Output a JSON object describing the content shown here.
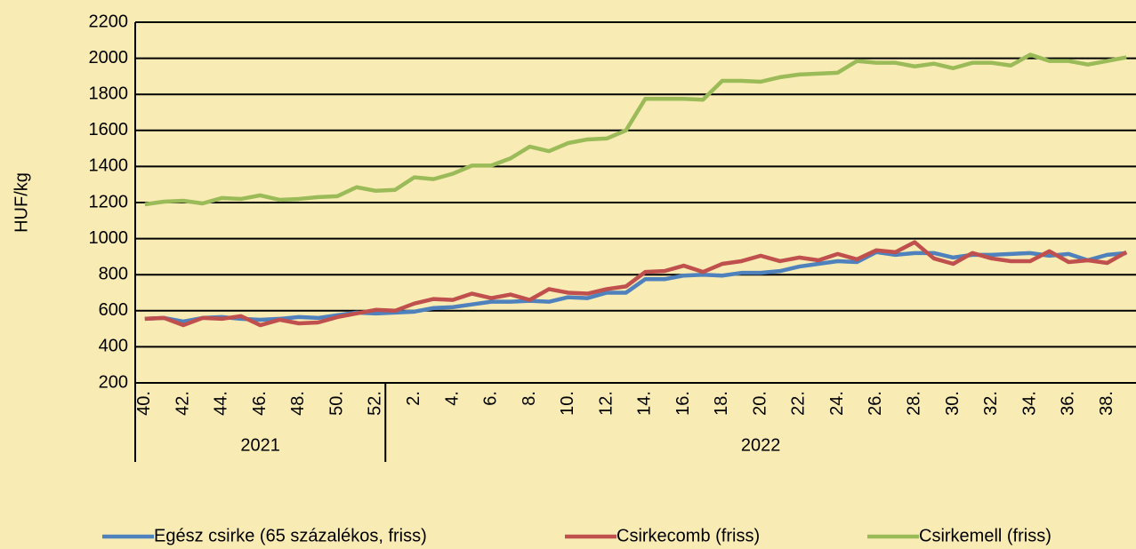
{
  "chart_data": {
    "type": "line",
    "y_label": "HUF/kg",
    "categories": [
      "40.",
      null,
      "42.",
      null,
      "44.",
      null,
      "46.",
      null,
      "48.",
      null,
      "50.",
      null,
      "52.",
      null,
      "2.",
      null,
      "4.",
      null,
      "6.",
      null,
      "8.",
      null,
      "10.",
      null,
      "12.",
      null,
      "14.",
      null,
      "16.",
      null,
      "18.",
      null,
      "20.",
      null,
      "22.",
      null,
      "24.",
      null,
      "26.",
      null,
      "28.",
      null,
      "30.",
      null,
      "32.",
      null,
      "34.",
      null,
      "36.",
      null,
      "38.",
      null
    ],
    "groups": [
      {
        "label": "2021",
        "size": 13
      },
      {
        "label": "2022",
        "size": 39
      }
    ],
    "series": [
      {
        "name": "Egész csirke (65 százalékos, friss)",
        "color": "#4f81bd",
        "values": [
          555,
          560,
          540,
          560,
          565,
          555,
          550,
          555,
          565,
          560,
          575,
          590,
          585,
          590,
          595,
          615,
          620,
          635,
          650,
          650,
          655,
          650,
          675,
          670,
          700,
          700,
          775,
          775,
          795,
          800,
          795,
          810,
          810,
          820,
          845,
          860,
          875,
          870,
          925,
          910,
          920,
          920,
          895,
          910,
          910,
          915,
          920,
          905,
          915,
          880,
          910,
          920
        ]
      },
      {
        "name": "Csirkecomb (friss)",
        "color": "#c0504d",
        "values": [
          555,
          560,
          520,
          560,
          555,
          570,
          520,
          550,
          530,
          535,
          565,
          585,
          605,
          600,
          640,
          665,
          660,
          695,
          670,
          690,
          660,
          720,
          700,
          695,
          720,
          735,
          815,
          820,
          850,
          815,
          860,
          875,
          905,
          875,
          895,
          880,
          915,
          885,
          935,
          925,
          980,
          890,
          860,
          920,
          890,
          875,
          875,
          930,
          870,
          880,
          865,
          925
        ]
      },
      {
        "name": "Csirkemell (friss)",
        "color": "#9bbb59",
        "values": [
          1190,
          1205,
          1210,
          1195,
          1225,
          1220,
          1240,
          1215,
          1220,
          1230,
          1235,
          1285,
          1265,
          1270,
          1340,
          1330,
          1360,
          1405,
          1405,
          1445,
          1510,
          1485,
          1530,
          1550,
          1555,
          1600,
          1775,
          1775,
          1775,
          1770,
          1875,
          1875,
          1870,
          1895,
          1910,
          1915,
          1920,
          1985,
          1975,
          1975,
          1955,
          1970,
          1945,
          1975,
          1975,
          1960,
          2020,
          1985,
          1985,
          1965,
          1985,
          2005
        ]
      }
    ],
    "ylim": [
      200,
      2200
    ],
    "yticks": [
      200,
      400,
      600,
      800,
      1000,
      1200,
      1400,
      1600,
      1800,
      2000,
      2200
    ],
    "grid": true,
    "legend": "bottom"
  }
}
